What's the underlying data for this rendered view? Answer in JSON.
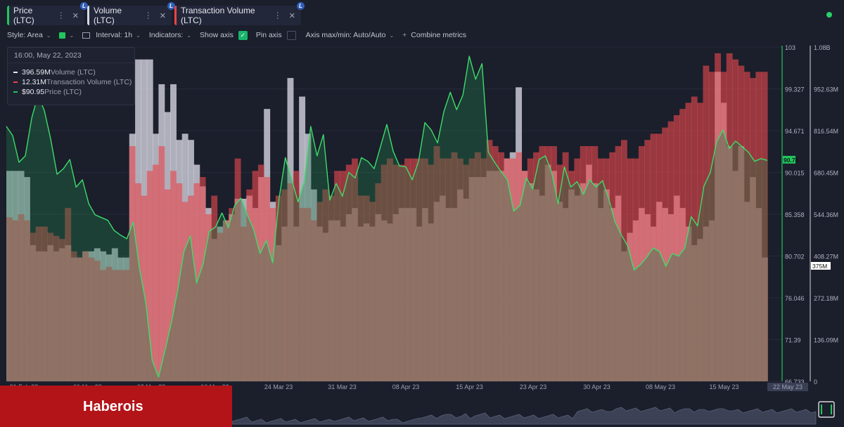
{
  "tabs": [
    {
      "label": "Price (LTC)",
      "color": "#22c55e",
      "badge": "L"
    },
    {
      "label": "Volume (LTC)",
      "color": "#d7d9e3",
      "badge": "L"
    },
    {
      "label": "Transaction Volume (LTC)",
      "color": "#ef4444",
      "badge": "L"
    }
  ],
  "toolbar": {
    "style": "Style: Area",
    "style_color": "#22c55e",
    "interval": "Interval: 1h",
    "indicators": "Indicators:",
    "show_axis": "Show axis",
    "show_axis_checked": true,
    "pin_axis": "Pin axis",
    "pin_axis_checked": false,
    "axis_maxmin": "Axis max/min: Auto/Auto",
    "combine": "Combine metrics"
  },
  "tooltip": {
    "time": "16:00, May 22, 2023",
    "rows": [
      {
        "value": "396.59M",
        "name": "Volume (LTC)",
        "color": "#e5e7ee"
      },
      {
        "value": "12.31M",
        "name": "Transaction Volume (LTC)",
        "color": "#ef4444"
      },
      {
        "value": "$90.95",
        "name": "Price (LTC)",
        "color": "#22c55e"
      }
    ]
  },
  "brand": "Haberois",
  "chart_data": {
    "type": "area",
    "x_range": [
      "21 Feb 23",
      "22 May 23"
    ],
    "x_ticks": [
      "21 Feb 23",
      "01 Mar 23",
      "08 Mar 23",
      "16 Mar 23",
      "24 Mar 23",
      "31 Mar 23",
      "08 Apr 23",
      "15 Apr 23",
      "23 Apr 23",
      "30 Apr 23",
      "08 May 23",
      "15 May 23",
      "22 May 23"
    ],
    "price_axis": {
      "ticks": [
        "103",
        "99.327",
        "94.671",
        "90.015",
        "85.358",
        "80.702",
        "76.046",
        "71.39",
        "66.733"
      ],
      "min": 66.733,
      "max": 103,
      "current_label": "90.74",
      "color": "#22c55e"
    },
    "volume_axis": {
      "ticks": [
        "1.08B",
        "952.63M",
        "816.54M",
        "680.45M",
        "544.36M",
        "408.27M",
        "272.18M",
        "136.09M",
        "0"
      ],
      "min": 0,
      "max": 1080000000,
      "marker_label": "375M"
    },
    "series": [
      {
        "name": "Volume (LTC)",
        "axis": "volume",
        "color": "#d4d6e2",
        "values": [
          680,
          680,
          680,
          660,
          440,
          420,
          420,
          440,
          420,
          430,
          440,
          400,
          400,
          420,
          420,
          430,
          420,
          410,
          430,
          400,
          400,
          800,
          1040,
          1040,
          1040,
          800,
          960,
          870,
          960,
          780,
          800,
          780,
          700,
          630,
          560,
          460,
          500,
          520,
          540,
          590,
          590,
          600,
          560,
          660,
          880,
          580,
          440,
          500,
          980,
          500,
          920,
          800,
          620,
          500,
          480,
          520,
          520,
          500,
          540,
          560,
          500,
          510,
          500,
          540,
          520,
          510,
          540,
          560,
          560,
          560,
          500,
          560,
          510,
          580,
          600,
          560,
          560,
          620,
          590,
          660,
          660,
          660,
          680,
          680,
          680,
          720,
          740,
          950,
          680,
          640,
          620,
          600,
          700,
          680,
          580,
          560,
          620,
          600,
          640,
          700,
          640,
          560,
          620,
          560,
          600,
          420,
          480,
          520,
          560,
          540,
          500,
          580,
          560,
          540,
          600,
          560,
          500,
          440,
          460,
          500,
          520,
          1000,
          900,
          760,
          680,
          760,
          580,
          660,
          560,
          400
        ]
      },
      {
        "name": "Transaction Volume (LTC)",
        "axis": "volume",
        "color": "#ef4444",
        "values": [
          530,
          520,
          540,
          520,
          480,
          500,
          500,
          480,
          470,
          460,
          560,
          420,
          400,
          420,
          400,
          390,
          360,
          370,
          360,
          360,
          360,
          760,
          640,
          600,
          680,
          700,
          760,
          620,
          680,
          640,
          580,
          600,
          640,
          660,
          540,
          600,
          480,
          520,
          560,
          720,
          500,
          620,
          680,
          700,
          660,
          560,
          600,
          620,
          640,
          680,
          560,
          560,
          520,
          580,
          620,
          600,
          680,
          680,
          700,
          720,
          600,
          600,
          580,
          640,
          700,
          720,
          700,
          700,
          720,
          720,
          720,
          720,
          700,
          760,
          720,
          720,
          740,
          720,
          700,
          720,
          740,
          720,
          780,
          760,
          740,
          720,
          720,
          740,
          680,
          720,
          740,
          760,
          760,
          760,
          700,
          740,
          680,
          720,
          760,
          760,
          760,
          720,
          720,
          740,
          760,
          780,
          720,
          720,
          760,
          780,
          800,
          800,
          820,
          840,
          860,
          880,
          900,
          920,
          900,
          1020,
          1000,
          1060,
          1000,
          1060,
          1040,
          1020,
          1000,
          980,
          1000,
          1000
        ]
      },
      {
        "name": "Price (LTC)",
        "axis": "price",
        "color": "#22c55e",
        "points": [
          [
            0,
            94.4
          ],
          [
            1,
            93.4
          ],
          [
            2,
            90.5
          ],
          [
            3,
            91.2
          ],
          [
            4,
            95.3
          ],
          [
            5,
            97.8
          ],
          [
            6,
            96.1
          ],
          [
            7,
            93.0
          ],
          [
            8,
            89.2
          ],
          [
            9,
            89.8
          ],
          [
            10,
            90.8
          ],
          [
            11,
            87.8
          ],
          [
            12,
            88.6
          ],
          [
            13,
            86.0
          ],
          [
            14,
            84.8
          ],
          [
            15,
            84.5
          ],
          [
            16,
            84.2
          ],
          [
            17,
            83.1
          ],
          [
            18,
            82.6
          ],
          [
            19,
            82.2
          ],
          [
            20,
            84.0
          ],
          [
            21,
            79.0
          ],
          [
            22,
            75.2
          ],
          [
            23,
            69.0
          ],
          [
            24,
            67.2
          ],
          [
            25,
            70.0
          ],
          [
            26,
            73.0
          ],
          [
            27,
            76.5
          ],
          [
            28,
            80.8
          ],
          [
            29,
            82.5
          ],
          [
            30,
            77.4
          ],
          [
            31,
            79.4
          ],
          [
            32,
            83.0
          ],
          [
            33,
            83.5
          ],
          [
            34,
            85.0
          ],
          [
            35,
            83.4
          ],
          [
            36,
            85.8
          ],
          [
            37,
            86.6
          ],
          [
            38,
            84.8
          ],
          [
            39,
            83.2
          ],
          [
            40,
            80.6
          ],
          [
            41,
            82.0
          ],
          [
            42,
            79.6
          ],
          [
            43,
            86.5
          ],
          [
            44,
            91.0
          ],
          [
            45,
            88.6
          ],
          [
            46,
            86.2
          ],
          [
            47,
            88.4
          ],
          [
            48,
            94.4
          ],
          [
            49,
            91.2
          ],
          [
            50,
            93.5
          ],
          [
            51,
            86.4
          ],
          [
            52,
            88.2
          ],
          [
            53,
            86.8
          ],
          [
            54,
            89.4
          ],
          [
            55,
            88.8
          ],
          [
            56,
            91.0
          ],
          [
            57,
            90.6
          ],
          [
            58,
            89.8
          ],
          [
            59,
            92.2
          ],
          [
            60,
            94.6
          ],
          [
            61,
            91.7
          ],
          [
            62,
            90.1
          ],
          [
            63,
            90.0
          ],
          [
            64,
            88.6
          ],
          [
            65,
            90.6
          ],
          [
            66,
            94.8
          ],
          [
            67,
            94.0
          ],
          [
            68,
            92.6
          ],
          [
            69,
            96.0
          ],
          [
            70,
            98.1
          ],
          [
            71,
            96.2
          ],
          [
            72,
            97.8
          ],
          [
            73,
            102.0
          ],
          [
            74,
            99.5
          ],
          [
            75,
            101.2
          ],
          [
            76,
            91.6
          ],
          [
            77,
            90.5
          ],
          [
            78,
            89.5
          ],
          [
            79,
            88.6
          ],
          [
            80,
            85.2
          ],
          [
            81,
            85.8
          ],
          [
            82,
            88.8
          ],
          [
            83,
            87.6
          ],
          [
            84,
            90.8
          ],
          [
            85,
            91.2
          ],
          [
            86,
            89.4
          ],
          [
            87,
            86.0
          ],
          [
            88,
            90.0
          ],
          [
            89,
            87.8
          ],
          [
            90,
            88.4
          ],
          [
            91,
            87.0
          ],
          [
            92,
            88.6
          ],
          [
            93,
            87.8
          ],
          [
            94,
            88.5
          ],
          [
            95,
            86.5
          ],
          [
            96,
            84.0
          ],
          [
            97,
            82.6
          ],
          [
            98,
            81.4
          ],
          [
            99,
            78.8
          ],
          [
            100,
            79.4
          ],
          [
            101,
            80.2
          ],
          [
            102,
            81.2
          ],
          [
            103,
            80.8
          ],
          [
            104,
            79.2
          ],
          [
            105,
            80.6
          ],
          [
            106,
            80.3
          ],
          [
            107,
            81.2
          ],
          [
            108,
            84.6
          ],
          [
            109,
            83.6
          ],
          [
            110,
            87.9
          ],
          [
            111,
            89.4
          ],
          [
            112,
            92.7
          ],
          [
            113,
            94.0
          ],
          [
            114,
            92.0
          ],
          [
            115,
            92.8
          ],
          [
            116,
            92.2
          ],
          [
            117,
            91.6
          ],
          [
            118,
            90.6
          ],
          [
            119,
            90.9
          ],
          [
            120,
            90.7
          ]
        ]
      }
    ],
    "grid": true,
    "legend": "tooltip top-left"
  }
}
